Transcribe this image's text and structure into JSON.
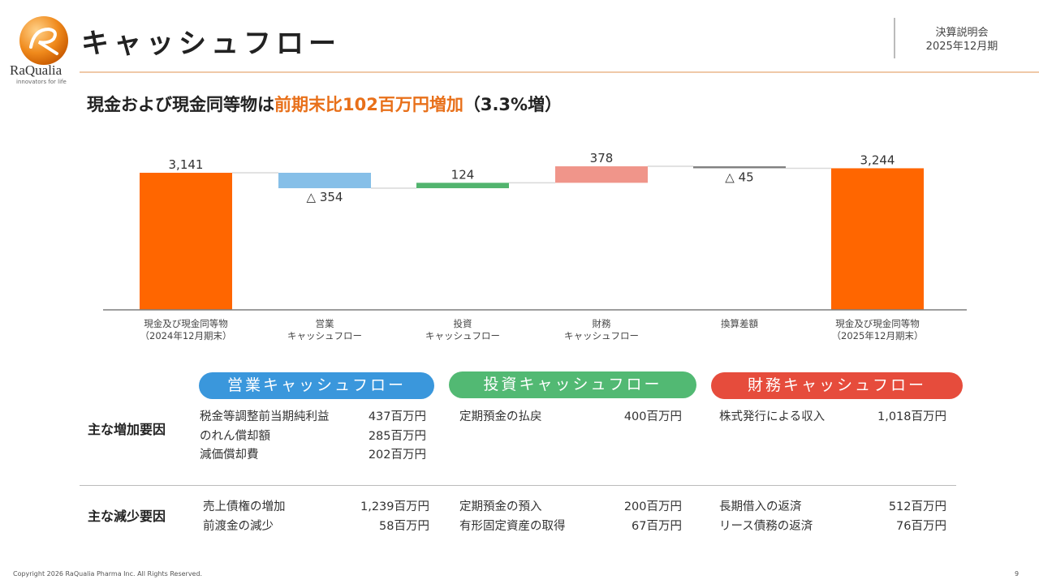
{
  "header": {
    "brand": "RaQualia",
    "tagline": "innovators for life",
    "title": "キャッシュフロー",
    "meta_line1": "決算説明会",
    "meta_line2": "2025年12月期"
  },
  "subtitle": {
    "prefix": "現金および現金同等物は",
    "highlight": "前期末比102百万円増加",
    "suffix": "（3.3%増）"
  },
  "colors": {
    "start_end": "#ff6600",
    "operating": "#86bfe8",
    "investing": "#52b46e",
    "financing": "#f0958a",
    "fx": "#808080",
    "accent": "#e8701a"
  },
  "chart_data": {
    "type": "waterfall",
    "categories": [
      [
        "現金及び現金同等物",
        "（2024年12月期末）"
      ],
      [
        "営業",
        "キャッシュフロー"
      ],
      [
        "投資",
        "キャッシュフロー"
      ],
      [
        "財務",
        "キャッシュフロー"
      ],
      [
        "換算差額",
        ""
      ],
      [
        "現金及び現金同等物",
        "（2025年12月期末）"
      ]
    ],
    "values": [
      3141,
      -354,
      124,
      378,
      -45,
      3244
    ],
    "kinds": [
      "total",
      "delta",
      "delta",
      "delta",
      "delta",
      "total"
    ],
    "data_labels": [
      "3,141",
      "△ 354",
      "124",
      "378",
      "△ 45",
      "3,244"
    ],
    "bar_colors": [
      "#ff6600",
      "#86bfe8",
      "#52b46e",
      "#f0958a",
      "#808080",
      "#ff6600"
    ],
    "ylim": [
      0,
      3300
    ],
    "grid": false,
    "unit": "百万円"
  },
  "details": {
    "pills": [
      {
        "label": "営業キャッシュフロー",
        "color": "#3a97dc"
      },
      {
        "label": "投資キャッシュフロー",
        "color": "#52b973"
      },
      {
        "label": "財務キャッシュフロー",
        "color": "#e64c3c"
      }
    ],
    "increase_label": "主な増加要因",
    "decrease_label": "主な減少要因",
    "increase": [
      [
        {
          "item": "税金等調整前当期純利益",
          "value": "437百万円"
        },
        {
          "item": "のれん償却額",
          "value": "285百万円"
        },
        {
          "item": "減価償却費",
          "value": "202百万円"
        }
      ],
      [
        {
          "item": "定期預金の払戻",
          "value": "400百万円"
        }
      ],
      [
        {
          "item": "株式発行による収入",
          "value": "1,018百万円"
        }
      ]
    ],
    "decrease": [
      [
        {
          "item": "売上債権の増加",
          "value": "1,239百万円"
        },
        {
          "item": "前渡金の減少",
          "value": "58百万円"
        }
      ],
      [
        {
          "item": "定期預金の預入",
          "value": "200百万円"
        },
        {
          "item": "有形固定資産の取得",
          "value": "67百万円"
        }
      ],
      [
        {
          "item": "長期借入の返済",
          "value": "512百万円"
        },
        {
          "item": "リース債務の返済",
          "value": "76百万円"
        }
      ]
    ]
  },
  "footer": {
    "copyright": "Copyright 2026 RaQualia Pharma Inc. All Rights Reserved.",
    "page": "9"
  }
}
